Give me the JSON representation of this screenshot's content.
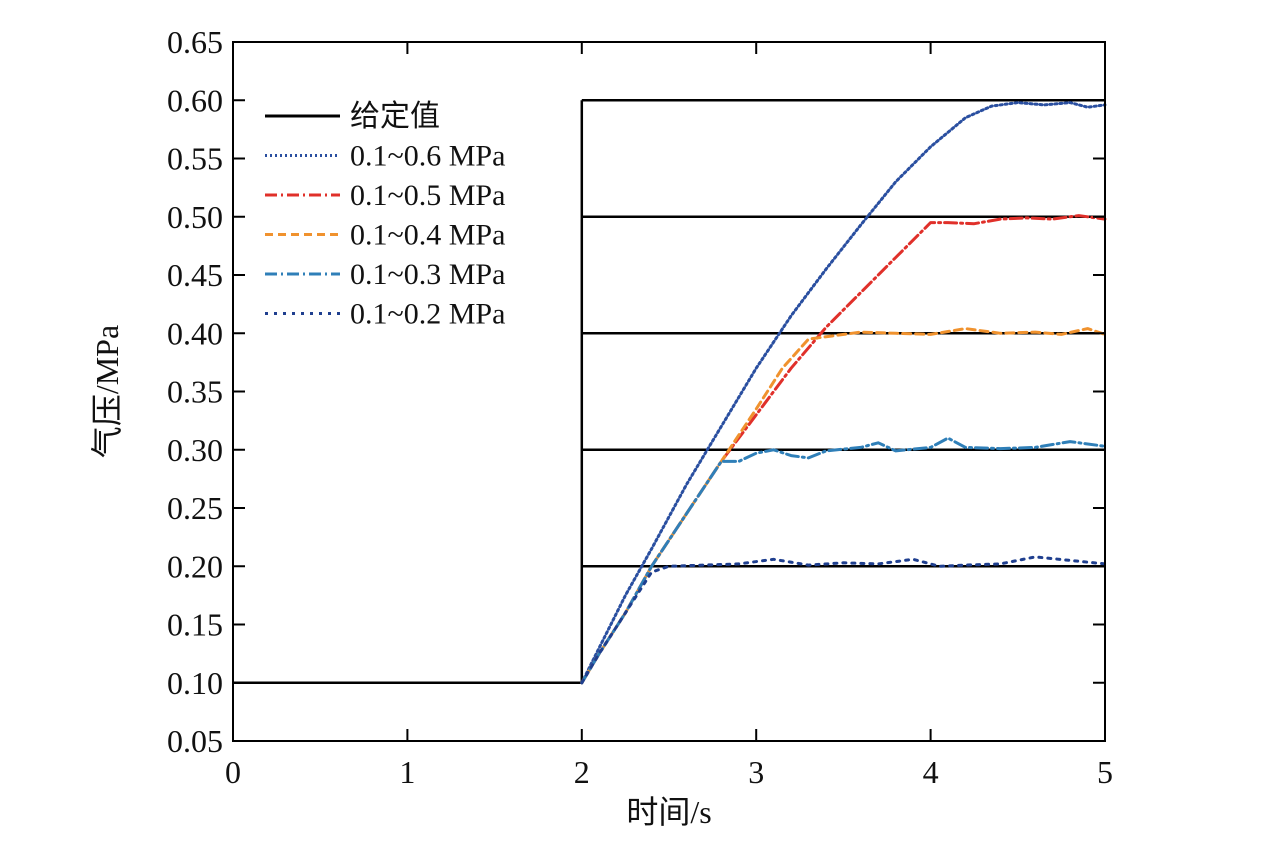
{
  "chart_data": {
    "type": "line",
    "title": "",
    "xlabel": "时间/s",
    "ylabel": "气压/MPa",
    "xlim": [
      0,
      5
    ],
    "ylim": [
      0.05,
      0.65
    ],
    "xticks": [
      0,
      1,
      2,
      3,
      4,
      5
    ],
    "xtick_labels": [
      "0",
      "1",
      "2",
      "3",
      "4",
      "5"
    ],
    "yticks": [
      0.05,
      0.1,
      0.15,
      0.2,
      0.25,
      0.3,
      0.35,
      0.4,
      0.45,
      0.5,
      0.55,
      0.6,
      0.65
    ],
    "ytick_labels": [
      "0.05",
      "0.10",
      "0.15",
      "0.20",
      "0.25",
      "0.30",
      "0.35",
      "0.40",
      "0.45",
      "0.50",
      "0.55",
      "0.60",
      "0.65"
    ],
    "grid": false,
    "legend_position": "top-left",
    "setpoint": {
      "name": "给定值",
      "color": "#000000",
      "dash": "solid",
      "initial": 0.1,
      "step_time": 2.0,
      "levels": [
        0.2,
        0.3,
        0.4,
        0.5,
        0.6
      ]
    },
    "series": [
      {
        "name": "0.1~0.6 MPa",
        "color": "#2a4fa0",
        "dash": "2,3",
        "points": [
          [
            2.0,
            0.1
          ],
          [
            2.1,
            0.13
          ],
          [
            2.25,
            0.175
          ],
          [
            2.4,
            0.215
          ],
          [
            2.6,
            0.27
          ],
          [
            2.8,
            0.32
          ],
          [
            3.0,
            0.37
          ],
          [
            3.2,
            0.415
          ],
          [
            3.4,
            0.455
          ],
          [
            3.6,
            0.493
          ],
          [
            3.8,
            0.53
          ],
          [
            4.0,
            0.56
          ],
          [
            4.2,
            0.585
          ],
          [
            4.35,
            0.595
          ],
          [
            4.5,
            0.598
          ],
          [
            4.65,
            0.596
          ],
          [
            4.8,
            0.598
          ],
          [
            4.9,
            0.594
          ],
          [
            5.0,
            0.596
          ]
        ]
      },
      {
        "name": "0.1~0.5 MPa",
        "color": "#e0302a",
        "dash": "12,4,2,4",
        "points": [
          [
            2.0,
            0.1
          ],
          [
            2.1,
            0.125
          ],
          [
            2.25,
            0.16
          ],
          [
            2.4,
            0.2
          ],
          [
            2.6,
            0.245
          ],
          [
            2.8,
            0.29
          ],
          [
            3.0,
            0.33
          ],
          [
            3.2,
            0.37
          ],
          [
            3.4,
            0.405
          ],
          [
            3.6,
            0.435
          ],
          [
            3.8,
            0.465
          ],
          [
            4.0,
            0.495
          ],
          [
            4.1,
            0.495
          ],
          [
            4.25,
            0.494
          ],
          [
            4.4,
            0.498
          ],
          [
            4.55,
            0.499
          ],
          [
            4.7,
            0.498
          ],
          [
            4.85,
            0.501
          ],
          [
            5.0,
            0.498
          ]
        ]
      },
      {
        "name": "0.1~0.4 MPa",
        "color": "#f0922e",
        "dash": "8,5",
        "points": [
          [
            2.0,
            0.1
          ],
          [
            2.1,
            0.125
          ],
          [
            2.25,
            0.16
          ],
          [
            2.4,
            0.2
          ],
          [
            2.6,
            0.245
          ],
          [
            2.8,
            0.29
          ],
          [
            3.0,
            0.335
          ],
          [
            3.15,
            0.37
          ],
          [
            3.3,
            0.395
          ],
          [
            3.45,
            0.398
          ],
          [
            3.6,
            0.401
          ],
          [
            3.8,
            0.4
          ],
          [
            4.0,
            0.399
          ],
          [
            4.2,
            0.404
          ],
          [
            4.4,
            0.4
          ],
          [
            4.6,
            0.401
          ],
          [
            4.75,
            0.399
          ],
          [
            4.9,
            0.404
          ],
          [
            5.0,
            0.399
          ]
        ]
      },
      {
        "name": "0.1~0.3 MPa",
        "color": "#2f7fb8",
        "dash": "12,4,2,4",
        "points": [
          [
            2.0,
            0.1
          ],
          [
            2.1,
            0.125
          ],
          [
            2.25,
            0.16
          ],
          [
            2.4,
            0.2
          ],
          [
            2.6,
            0.245
          ],
          [
            2.8,
            0.29
          ],
          [
            2.9,
            0.29
          ],
          [
            3.0,
            0.297
          ],
          [
            3.1,
            0.3
          ],
          [
            3.2,
            0.295
          ],
          [
            3.3,
            0.293
          ],
          [
            3.4,
            0.299
          ],
          [
            3.6,
            0.302
          ],
          [
            3.7,
            0.306
          ],
          [
            3.8,
            0.299
          ],
          [
            4.0,
            0.302
          ],
          [
            4.1,
            0.31
          ],
          [
            4.2,
            0.302
          ],
          [
            4.4,
            0.301
          ],
          [
            4.6,
            0.302
          ],
          [
            4.8,
            0.307
          ],
          [
            5.0,
            0.303
          ]
        ]
      },
      {
        "name": "0.1~0.2 MPa",
        "color": "#1f3f8f",
        "dash": "3,6",
        "points": [
          [
            2.0,
            0.1
          ],
          [
            2.1,
            0.125
          ],
          [
            2.25,
            0.16
          ],
          [
            2.4,
            0.195
          ],
          [
            2.5,
            0.2
          ],
          [
            2.7,
            0.201
          ],
          [
            2.9,
            0.202
          ],
          [
            3.1,
            0.206
          ],
          [
            3.3,
            0.201
          ],
          [
            3.5,
            0.203
          ],
          [
            3.7,
            0.202
          ],
          [
            3.9,
            0.206
          ],
          [
            4.05,
            0.2
          ],
          [
            4.2,
            0.201
          ],
          [
            4.4,
            0.202
          ],
          [
            4.6,
            0.208
          ],
          [
            4.8,
            0.205
          ],
          [
            5.0,
            0.202
          ]
        ]
      }
    ]
  }
}
